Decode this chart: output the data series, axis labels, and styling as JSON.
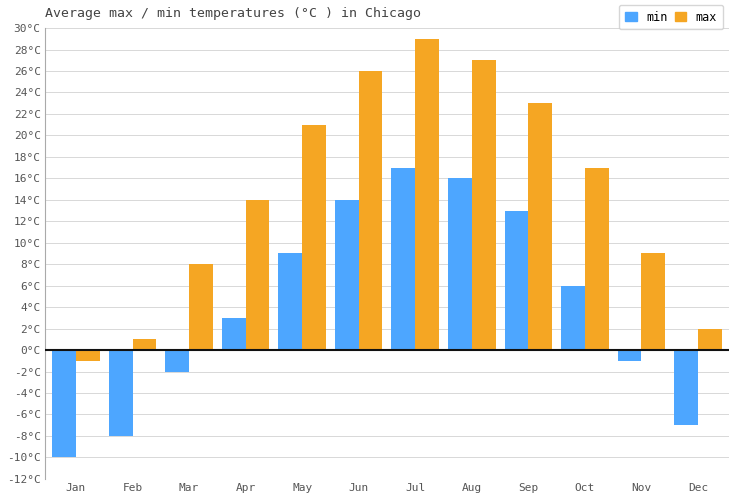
{
  "title": "Average max / min temperatures (°C ) in Chicago",
  "months": [
    "Jan",
    "Feb",
    "Mar",
    "Apr",
    "May",
    "Jun",
    "Jul",
    "Aug",
    "Sep",
    "Oct",
    "Nov",
    "Dec"
  ],
  "min_temps": [
    -10,
    -8,
    -2,
    3,
    9,
    14,
    17,
    16,
    13,
    6,
    -1,
    -7
  ],
  "max_temps": [
    -1,
    1,
    8,
    14,
    21,
    26,
    29,
    27,
    23,
    17,
    9,
    2
  ],
  "min_color": "#4da6ff",
  "max_color": "#f5a623",
  "ylim_min": -12,
  "ylim_max": 30,
  "ytick_step": 2,
  "background_color": "#ffffff",
  "grid_color": "#d8d8d8",
  "bar_width": 0.42,
  "title_fontsize": 9.5,
  "tick_fontsize": 8,
  "legend_fontsize": 8.5
}
